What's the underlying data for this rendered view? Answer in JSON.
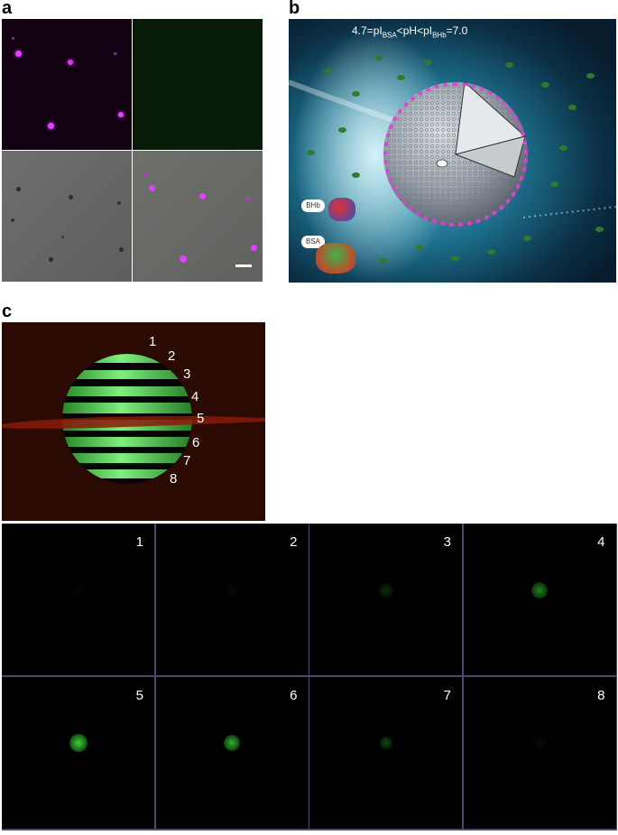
{
  "panels": {
    "a": {
      "letter": "a"
    },
    "b": {
      "letter": "b",
      "equation": {
        "prefix": "4.7=pI",
        "sub1": "BSA",
        "mid": "<pH<pI",
        "sub2": "BHb",
        "suffix": "=7.0"
      },
      "legend": {
        "bhb": "BHb",
        "bsa": "BSA"
      }
    },
    "c": {
      "letter": "c",
      "slice_labels": [
        "1",
        "2",
        "3",
        "4",
        "5",
        "6",
        "7",
        "8"
      ],
      "grid_labels": [
        "1",
        "2",
        "3",
        "4",
        "5",
        "6",
        "7",
        "8"
      ],
      "grid_intensity": [
        0.04,
        0.05,
        0.18,
        0.55,
        0.9,
        0.75,
        0.3,
        0.06
      ]
    }
  },
  "colors": {
    "magenta": "#e040ff",
    "green": "#3ed13e",
    "dark_red_bg": "#2a0a03"
  }
}
